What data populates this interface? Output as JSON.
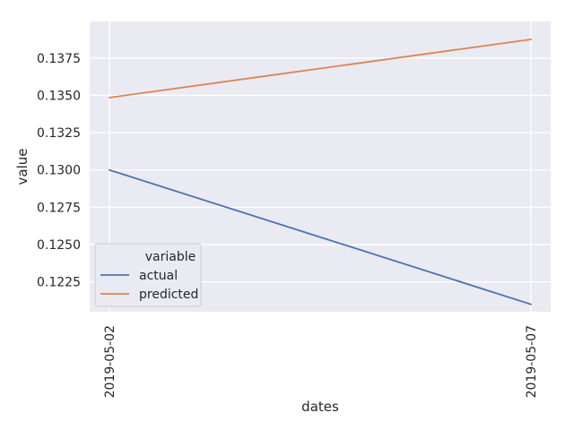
{
  "chart_data": {
    "type": "line",
    "title": "",
    "xlabel": "dates",
    "ylabel": "value",
    "x": [
      "2019-05-02",
      "2019-05-07"
    ],
    "series": [
      {
        "name": "actual",
        "values": [
          0.13,
          0.121
        ],
        "color": "#4c72b0"
      },
      {
        "name": "predicted",
        "values": [
          0.13485,
          0.13875
        ],
        "color": "#dd8452"
      }
    ],
    "ylim": [
      0.1205,
      0.13995
    ],
    "yticks": [
      "0.1225",
      "0.1250",
      "0.1275",
      "0.1300",
      "0.1325",
      "0.1350",
      "0.1375"
    ],
    "grid": true,
    "legend": {
      "title": "variable",
      "position": "lower-left",
      "entries": [
        "actual",
        "predicted"
      ]
    },
    "colors": {
      "background": "#eaeaf2",
      "grid": "#ffffff",
      "text": "#262626"
    }
  }
}
